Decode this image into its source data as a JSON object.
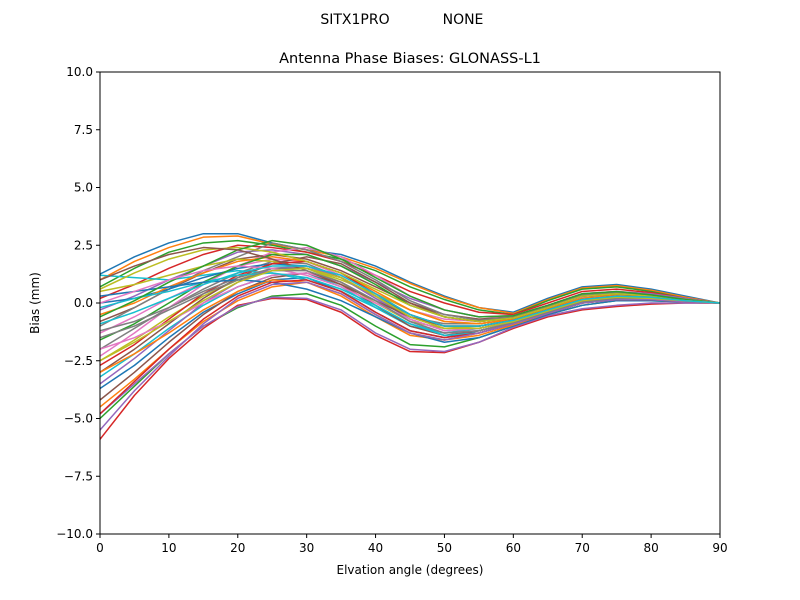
{
  "figure": {
    "suptitle_left": "SITX1PRO",
    "suptitle_right": "NONE"
  },
  "chart_data": {
    "type": "line",
    "title": "Antenna Phase Biases: GLONASS-L1",
    "xlabel": "Elvation angle (degrees)",
    "ylabel": "Bias (mm)",
    "xlim": [
      0,
      90
    ],
    "ylim": [
      -10,
      10
    ],
    "x_ticks": [
      0,
      10,
      20,
      30,
      40,
      50,
      60,
      70,
      80,
      90
    ],
    "y_ticks": [
      10.0,
      7.5,
      5.0,
      2.5,
      0.0,
      -2.5,
      -5.0,
      -7.5,
      -10.0
    ],
    "y_tick_labels": [
      "10.0",
      "7.5",
      "5.0",
      "2.5",
      "0.0",
      "−2.5",
      "−5.0",
      "−7.5",
      "−10.0"
    ],
    "grid": false,
    "legend": "none",
    "palette": [
      "#1f77b4",
      "#ff7f0e",
      "#2ca02c",
      "#d62728",
      "#9467bd",
      "#8c564b",
      "#e377c2",
      "#7f7f7f",
      "#bcbd22",
      "#17becf"
    ],
    "x": [
      0,
      5,
      10,
      15,
      20,
      25,
      30,
      35,
      40,
      45,
      50,
      55,
      60,
      65,
      70,
      75,
      80,
      85,
      90
    ],
    "series": [
      {
        "values": [
          1.25,
          2.0,
          2.6,
          3.0,
          3.0,
          2.6,
          2.3,
          2.1,
          1.6,
          0.9,
          0.3,
          -0.2,
          -0.4,
          0.2,
          0.7,
          0.8,
          0.6,
          0.3,
          0.0
        ]
      },
      {
        "values": [
          1.0,
          1.8,
          2.4,
          2.85,
          2.9,
          2.55,
          2.3,
          2.0,
          1.5,
          0.85,
          0.25,
          -0.2,
          -0.45,
          0.15,
          0.65,
          0.75,
          0.55,
          0.25,
          0.0
        ]
      },
      {
        "values": [
          0.7,
          1.5,
          2.2,
          2.6,
          2.7,
          2.5,
          2.2,
          1.9,
          1.4,
          0.7,
          0.15,
          -0.3,
          -0.5,
          0.1,
          0.6,
          0.7,
          0.5,
          0.2,
          0.0
        ]
      },
      {
        "values": [
          0.2,
          0.8,
          1.5,
          2.1,
          2.5,
          2.4,
          2.2,
          1.8,
          1.2,
          0.5,
          0.0,
          -0.4,
          -0.5,
          0.0,
          0.5,
          0.6,
          0.45,
          0.2,
          0.0
        ]
      },
      {
        "values": [
          -0.3,
          0.3,
          1.0,
          1.6,
          2.2,
          2.3,
          2.1,
          1.6,
          0.9,
          0.2,
          -0.3,
          -0.6,
          -0.55,
          -0.1,
          0.4,
          0.5,
          0.4,
          0.2,
          0.0
        ]
      },
      {
        "values": [
          -0.8,
          -0.2,
          0.6,
          1.3,
          1.9,
          2.1,
          1.9,
          1.4,
          0.7,
          0.0,
          -0.5,
          -0.7,
          -0.6,
          -0.15,
          0.3,
          0.45,
          0.35,
          0.15,
          0.0
        ]
      },
      {
        "values": [
          -1.3,
          -0.6,
          0.2,
          0.9,
          1.6,
          1.9,
          1.8,
          1.2,
          0.4,
          -0.3,
          -0.7,
          -0.8,
          -0.65,
          -0.2,
          0.25,
          0.4,
          0.3,
          0.15,
          0.0
        ]
      },
      {
        "values": [
          -2.0,
          -1.1,
          -0.2,
          0.6,
          1.3,
          1.8,
          1.7,
          1.1,
          0.2,
          -0.6,
          -0.9,
          -0.9,
          -0.7,
          -0.25,
          0.2,
          0.35,
          0.3,
          0.15,
          0.0
        ]
      },
      {
        "values": [
          -2.5,
          -1.6,
          -0.6,
          0.3,
          1.0,
          1.5,
          1.5,
          0.9,
          0.0,
          -0.8,
          -1.1,
          -1.0,
          -0.75,
          -0.3,
          0.15,
          0.3,
          0.25,
          0.1,
          0.0
        ]
      },
      {
        "values": [
          -3.2,
          -2.2,
          -1.1,
          -0.1,
          0.7,
          1.2,
          1.3,
          0.7,
          -0.2,
          -1.0,
          -1.3,
          -1.1,
          -0.8,
          -0.35,
          0.1,
          0.25,
          0.2,
          0.1,
          0.0
        ]
      },
      {
        "values": [
          -3.7,
          -2.7,
          -1.5,
          -0.4,
          0.4,
          1.0,
          1.1,
          0.5,
          -0.4,
          -1.2,
          -1.5,
          -1.2,
          -0.85,
          -0.4,
          0.05,
          0.2,
          0.2,
          0.1,
          0.0
        ]
      },
      {
        "values": [
          -4.5,
          -3.3,
          -2.0,
          -0.8,
          0.1,
          0.7,
          0.9,
          0.3,
          -0.6,
          -1.4,
          -1.6,
          -1.3,
          -0.9,
          -0.45,
          0.0,
          0.15,
          0.15,
          0.05,
          0.0
        ]
      },
      {
        "values": [
          -5.0,
          -3.6,
          -2.2,
          -1.0,
          -0.2,
          0.3,
          0.4,
          -0.1,
          -1.0,
          -1.8,
          -1.9,
          -1.5,
          -1.0,
          -0.5,
          -0.1,
          0.1,
          0.1,
          0.05,
          0.0
        ]
      },
      {
        "values": [
          -5.9,
          -4.0,
          -2.4,
          -1.1,
          -0.1,
          0.2,
          0.15,
          -0.4,
          -1.4,
          -2.1,
          -2.15,
          -1.7,
          -1.1,
          -0.6,
          -0.3,
          -0.15,
          -0.05,
          0.0,
          0.0
        ]
      },
      {
        "values": [
          -4.8,
          -3.5,
          -2.2,
          -1.0,
          -0.15,
          0.25,
          0.2,
          -0.3,
          -1.3,
          -2.0,
          -2.1,
          -1.7,
          -1.05,
          -0.55,
          -0.25,
          -0.1,
          0.0,
          0.0,
          0.0
        ]
      },
      {
        "values": [
          -3.0,
          -2.0,
          -0.9,
          0.2,
          1.1,
          1.7,
          2.0,
          1.7,
          0.9,
          0.0,
          -0.6,
          -0.8,
          -0.65,
          -0.2,
          0.3,
          0.4,
          0.3,
          0.15,
          0.0
        ]
      },
      {
        "values": [
          -2.3,
          -1.3,
          -0.2,
          0.8,
          1.6,
          2.2,
          2.4,
          2.0,
          1.2,
          0.3,
          -0.3,
          -0.6,
          -0.55,
          -0.1,
          0.4,
          0.5,
          0.35,
          0.15,
          0.0
        ]
      },
      {
        "values": [
          -1.0,
          -0.2,
          0.6,
          1.4,
          2.0,
          2.6,
          2.3,
          1.8,
          1.0,
          0.1,
          -0.5,
          -0.75,
          -0.6,
          -0.15,
          0.35,
          0.45,
          0.35,
          0.15,
          0.0
        ]
      },
      {
        "values": [
          0.5,
          0.8,
          1.2,
          1.6,
          1.9,
          1.8,
          1.5,
          1.0,
          0.4,
          -0.3,
          -0.8,
          -0.9,
          -0.7,
          -0.25,
          0.2,
          0.35,
          0.3,
          0.15,
          0.0
        ]
      },
      {
        "values": [
          1.2,
          1.1,
          1.0,
          1.2,
          1.4,
          1.3,
          1.0,
          0.5,
          -0.2,
          -0.9,
          -1.3,
          -1.2,
          -0.85,
          -0.4,
          0.05,
          0.2,
          0.2,
          0.1,
          0.0
        ]
      },
      {
        "values": [
          0.0,
          0.2,
          0.6,
          1.1,
          1.5,
          1.7,
          1.6,
          1.1,
          0.3,
          -0.5,
          -1.0,
          -1.0,
          -0.75,
          -0.3,
          0.15,
          0.3,
          0.25,
          0.1,
          0.0
        ]
      },
      {
        "values": [
          -0.5,
          0.0,
          0.7,
          1.3,
          1.8,
          2.0,
          1.8,
          1.3,
          0.5,
          -0.3,
          -0.8,
          -0.9,
          -0.7,
          -0.25,
          0.2,
          0.35,
          0.3,
          0.15,
          0.0
        ]
      },
      {
        "values": [
          -1.6,
          -0.9,
          0.0,
          0.9,
          1.6,
          2.1,
          2.1,
          1.6,
          0.8,
          -0.1,
          -0.6,
          -0.8,
          -0.65,
          -0.2,
          0.3,
          0.4,
          0.3,
          0.15,
          0.0
        ]
      },
      {
        "values": [
          -2.7,
          -1.8,
          -0.7,
          0.4,
          1.2,
          1.7,
          1.8,
          1.3,
          0.4,
          -0.5,
          -1.0,
          -1.0,
          -0.75,
          -0.3,
          0.15,
          0.3,
          0.25,
          0.1,
          0.0
        ]
      },
      {
        "values": [
          -3.5,
          -2.4,
          -1.2,
          0.0,
          0.9,
          1.5,
          1.6,
          1.1,
          0.2,
          -0.7,
          -1.2,
          -1.1,
          -0.8,
          -0.35,
          0.1,
          0.25,
          0.2,
          0.1,
          0.0
        ]
      },
      {
        "values": [
          -4.2,
          -3.0,
          -1.7,
          -0.5,
          0.5,
          1.1,
          1.3,
          0.8,
          -0.1,
          -1.0,
          -1.4,
          -1.2,
          -0.85,
          -0.4,
          0.05,
          0.2,
          0.2,
          0.1,
          0.0
        ]
      },
      {
        "values": [
          -2.0,
          -1.5,
          -0.8,
          0.0,
          0.7,
          1.2,
          1.3,
          0.9,
          0.1,
          -0.8,
          -1.3,
          -1.2,
          -0.85,
          -0.4,
          0.05,
          0.2,
          0.2,
          0.1,
          0.0
        ]
      },
      {
        "values": [
          -1.2,
          -0.8,
          -0.2,
          0.5,
          1.1,
          1.5,
          1.5,
          1.1,
          0.3,
          -0.6,
          -1.1,
          -1.1,
          -0.8,
          -0.35,
          0.1,
          0.25,
          0.2,
          0.1,
          0.0
        ]
      },
      {
        "values": [
          0.6,
          1.3,
          1.9,
          2.3,
          2.4,
          2.2,
          1.8,
          1.3,
          0.6,
          -0.1,
          -0.6,
          -0.8,
          -0.65,
          -0.2,
          0.3,
          0.4,
          0.3,
          0.15,
          0.0
        ]
      },
      {
        "values": [
          -0.2,
          0.2,
          0.5,
          0.9,
          1.2,
          1.3,
          1.1,
          0.6,
          -0.1,
          -0.9,
          -1.4,
          -1.3,
          -0.9,
          -0.4,
          0.0,
          0.15,
          0.15,
          0.05,
          0.0
        ]
      },
      {
        "values": [
          0.3,
          0.5,
          0.7,
          0.9,
          1.0,
          0.9,
          0.6,
          0.1,
          -0.6,
          -1.3,
          -1.7,
          -1.5,
          -1.0,
          -0.5,
          -0.1,
          0.1,
          0.1,
          0.05,
          0.0
        ]
      },
      {
        "values": [
          -3.0,
          -2.2,
          -1.3,
          -0.3,
          0.5,
          1.0,
          0.9,
          0.4,
          -0.5,
          -1.3,
          -1.6,
          -1.4,
          -0.95,
          -0.45,
          0.0,
          0.15,
          0.15,
          0.05,
          0.0
        ]
      },
      {
        "values": [
          -0.6,
          0.1,
          0.9,
          1.6,
          2.3,
          2.7,
          2.5,
          1.9,
          1.1,
          0.3,
          -0.3,
          -0.6,
          -0.55,
          -0.1,
          0.4,
          0.5,
          0.35,
          0.15,
          0.0
        ]
      },
      {
        "values": [
          -4.8,
          -3.4,
          -2.0,
          -0.7,
          0.3,
          0.9,
          1.0,
          0.5,
          -0.4,
          -1.2,
          -1.5,
          -1.3,
          -0.9,
          -0.45,
          0.0,
          0.15,
          0.15,
          0.05,
          0.0
        ]
      },
      {
        "values": [
          -5.5,
          -3.8,
          -2.3,
          -0.9,
          0.2,
          0.8,
          0.9,
          0.4,
          -0.5,
          -1.3,
          -1.6,
          -1.3,
          -0.9,
          -0.45,
          0.0,
          0.15,
          0.15,
          0.05,
          0.0
        ]
      },
      {
        "values": [
          1.0,
          1.6,
          2.1,
          2.4,
          2.3,
          1.9,
          1.4,
          0.8,
          0.1,
          -0.6,
          -1.0,
          -1.0,
          -0.75,
          -0.3,
          0.15,
          0.3,
          0.25,
          0.1,
          0.0
        ]
      },
      {
        "values": [
          0.0,
          0.5,
          1.0,
          1.4,
          1.6,
          1.5,
          1.2,
          0.7,
          0.0,
          -0.7,
          -1.2,
          -1.1,
          -0.8,
          -0.35,
          0.1,
          0.25,
          0.2,
          0.1,
          0.0
        ]
      },
      {
        "values": [
          -1.5,
          -1.0,
          -0.3,
          0.4,
          1.0,
          1.4,
          1.4,
          0.9,
          0.1,
          -0.8,
          -1.3,
          -1.2,
          -0.85,
          -0.4,
          0.05,
          0.2,
          0.2,
          0.1,
          0.0
        ]
      },
      {
        "values": [
          -2.5,
          -1.7,
          -0.8,
          0.1,
          0.9,
          1.4,
          1.5,
          1.1,
          0.3,
          -0.6,
          -1.1,
          -1.1,
          -0.8,
          -0.35,
          0.1,
          0.25,
          0.2,
          0.1,
          0.0
        ]
      },
      {
        "values": [
          -0.9,
          -0.4,
          0.2,
          0.8,
          1.3,
          1.6,
          1.6,
          1.2,
          0.4,
          -0.5,
          -1.0,
          -1.0,
          -0.75,
          -0.3,
          0.15,
          0.3,
          0.25,
          0.1,
          0.0
        ]
      }
    ]
  }
}
